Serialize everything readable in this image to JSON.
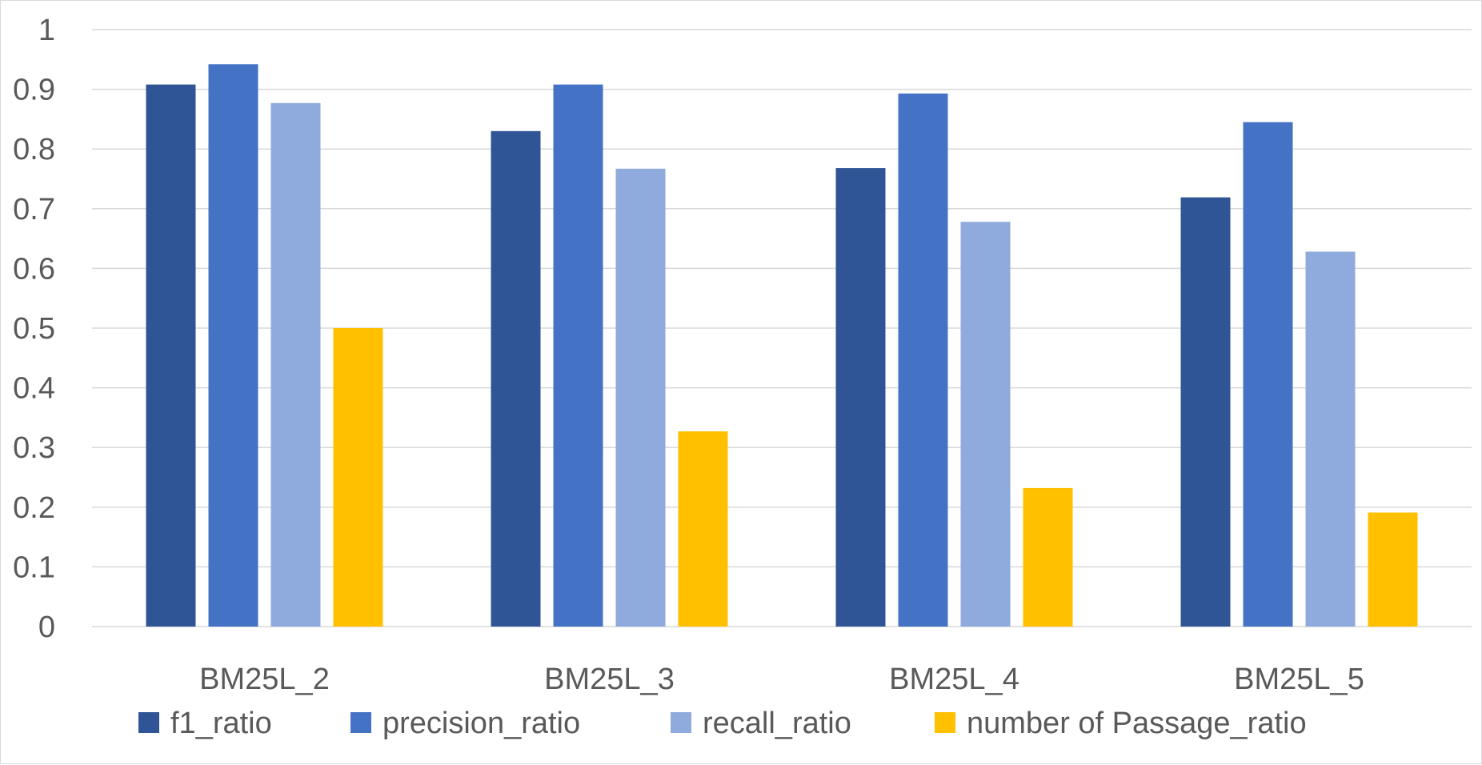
{
  "chart_data": {
    "type": "bar",
    "categories": [
      "BM25L_2",
      "BM25L_3",
      "BM25L_4",
      "BM25L_5"
    ],
    "series": [
      {
        "name": "f1_ratio",
        "color": "#2f5597",
        "values": [
          0.908,
          0.83,
          0.768,
          0.719
        ]
      },
      {
        "name": "precision_ratio",
        "color": "#4472c4",
        "values": [
          0.942,
          0.908,
          0.893,
          0.845
        ]
      },
      {
        "name": "recall_ratio",
        "color": "#8faadc",
        "values": [
          0.877,
          0.767,
          0.678,
          0.628
        ]
      },
      {
        "name": "number of Passage_ratio",
        "color": "#ffc000",
        "values": [
          0.5,
          0.327,
          0.232,
          0.191
        ]
      }
    ],
    "ylim": [
      0,
      1
    ],
    "yticks": [
      "0",
      "0.1",
      "0.2",
      "0.3",
      "0.4",
      "0.5",
      "0.6",
      "0.7",
      "0.8",
      "0.9",
      "1"
    ],
    "yticks_values": [
      0,
      0.1,
      0.2,
      0.3,
      0.4,
      0.5,
      0.6,
      0.7,
      0.8,
      0.9,
      1.0
    ],
    "grid": true,
    "legend_position": "bottom"
  }
}
